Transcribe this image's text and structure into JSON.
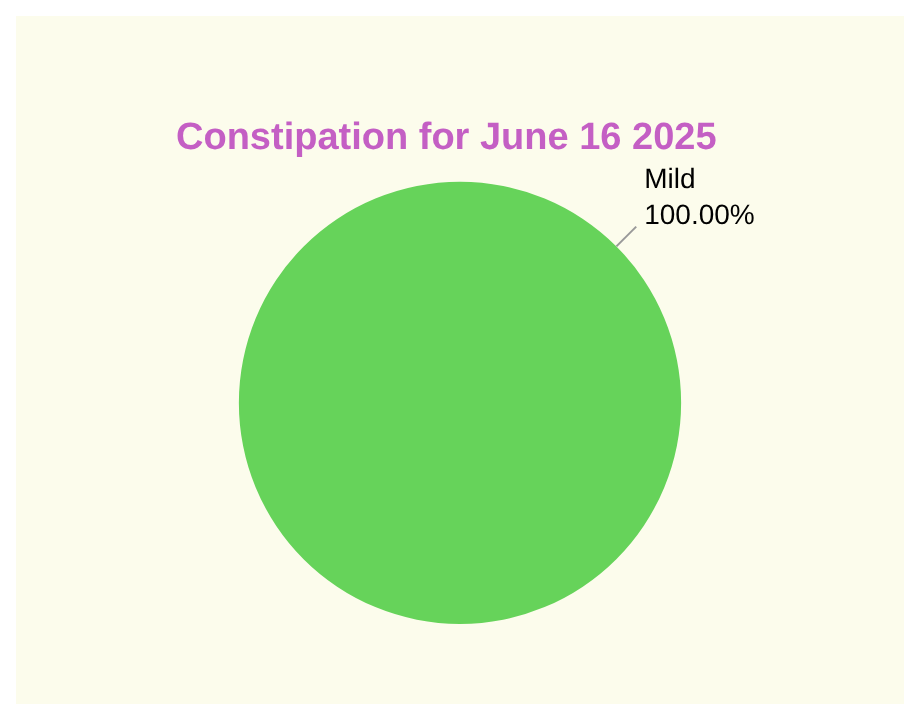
{
  "chart_data": {
    "type": "pie",
    "title": "Constipation for June 16 2025",
    "categories": [
      "Mild"
    ],
    "values": [
      100
    ],
    "colors": [
      "#66d35a"
    ],
    "value_labels": [
      "100.00%"
    ],
    "legend": false
  }
}
